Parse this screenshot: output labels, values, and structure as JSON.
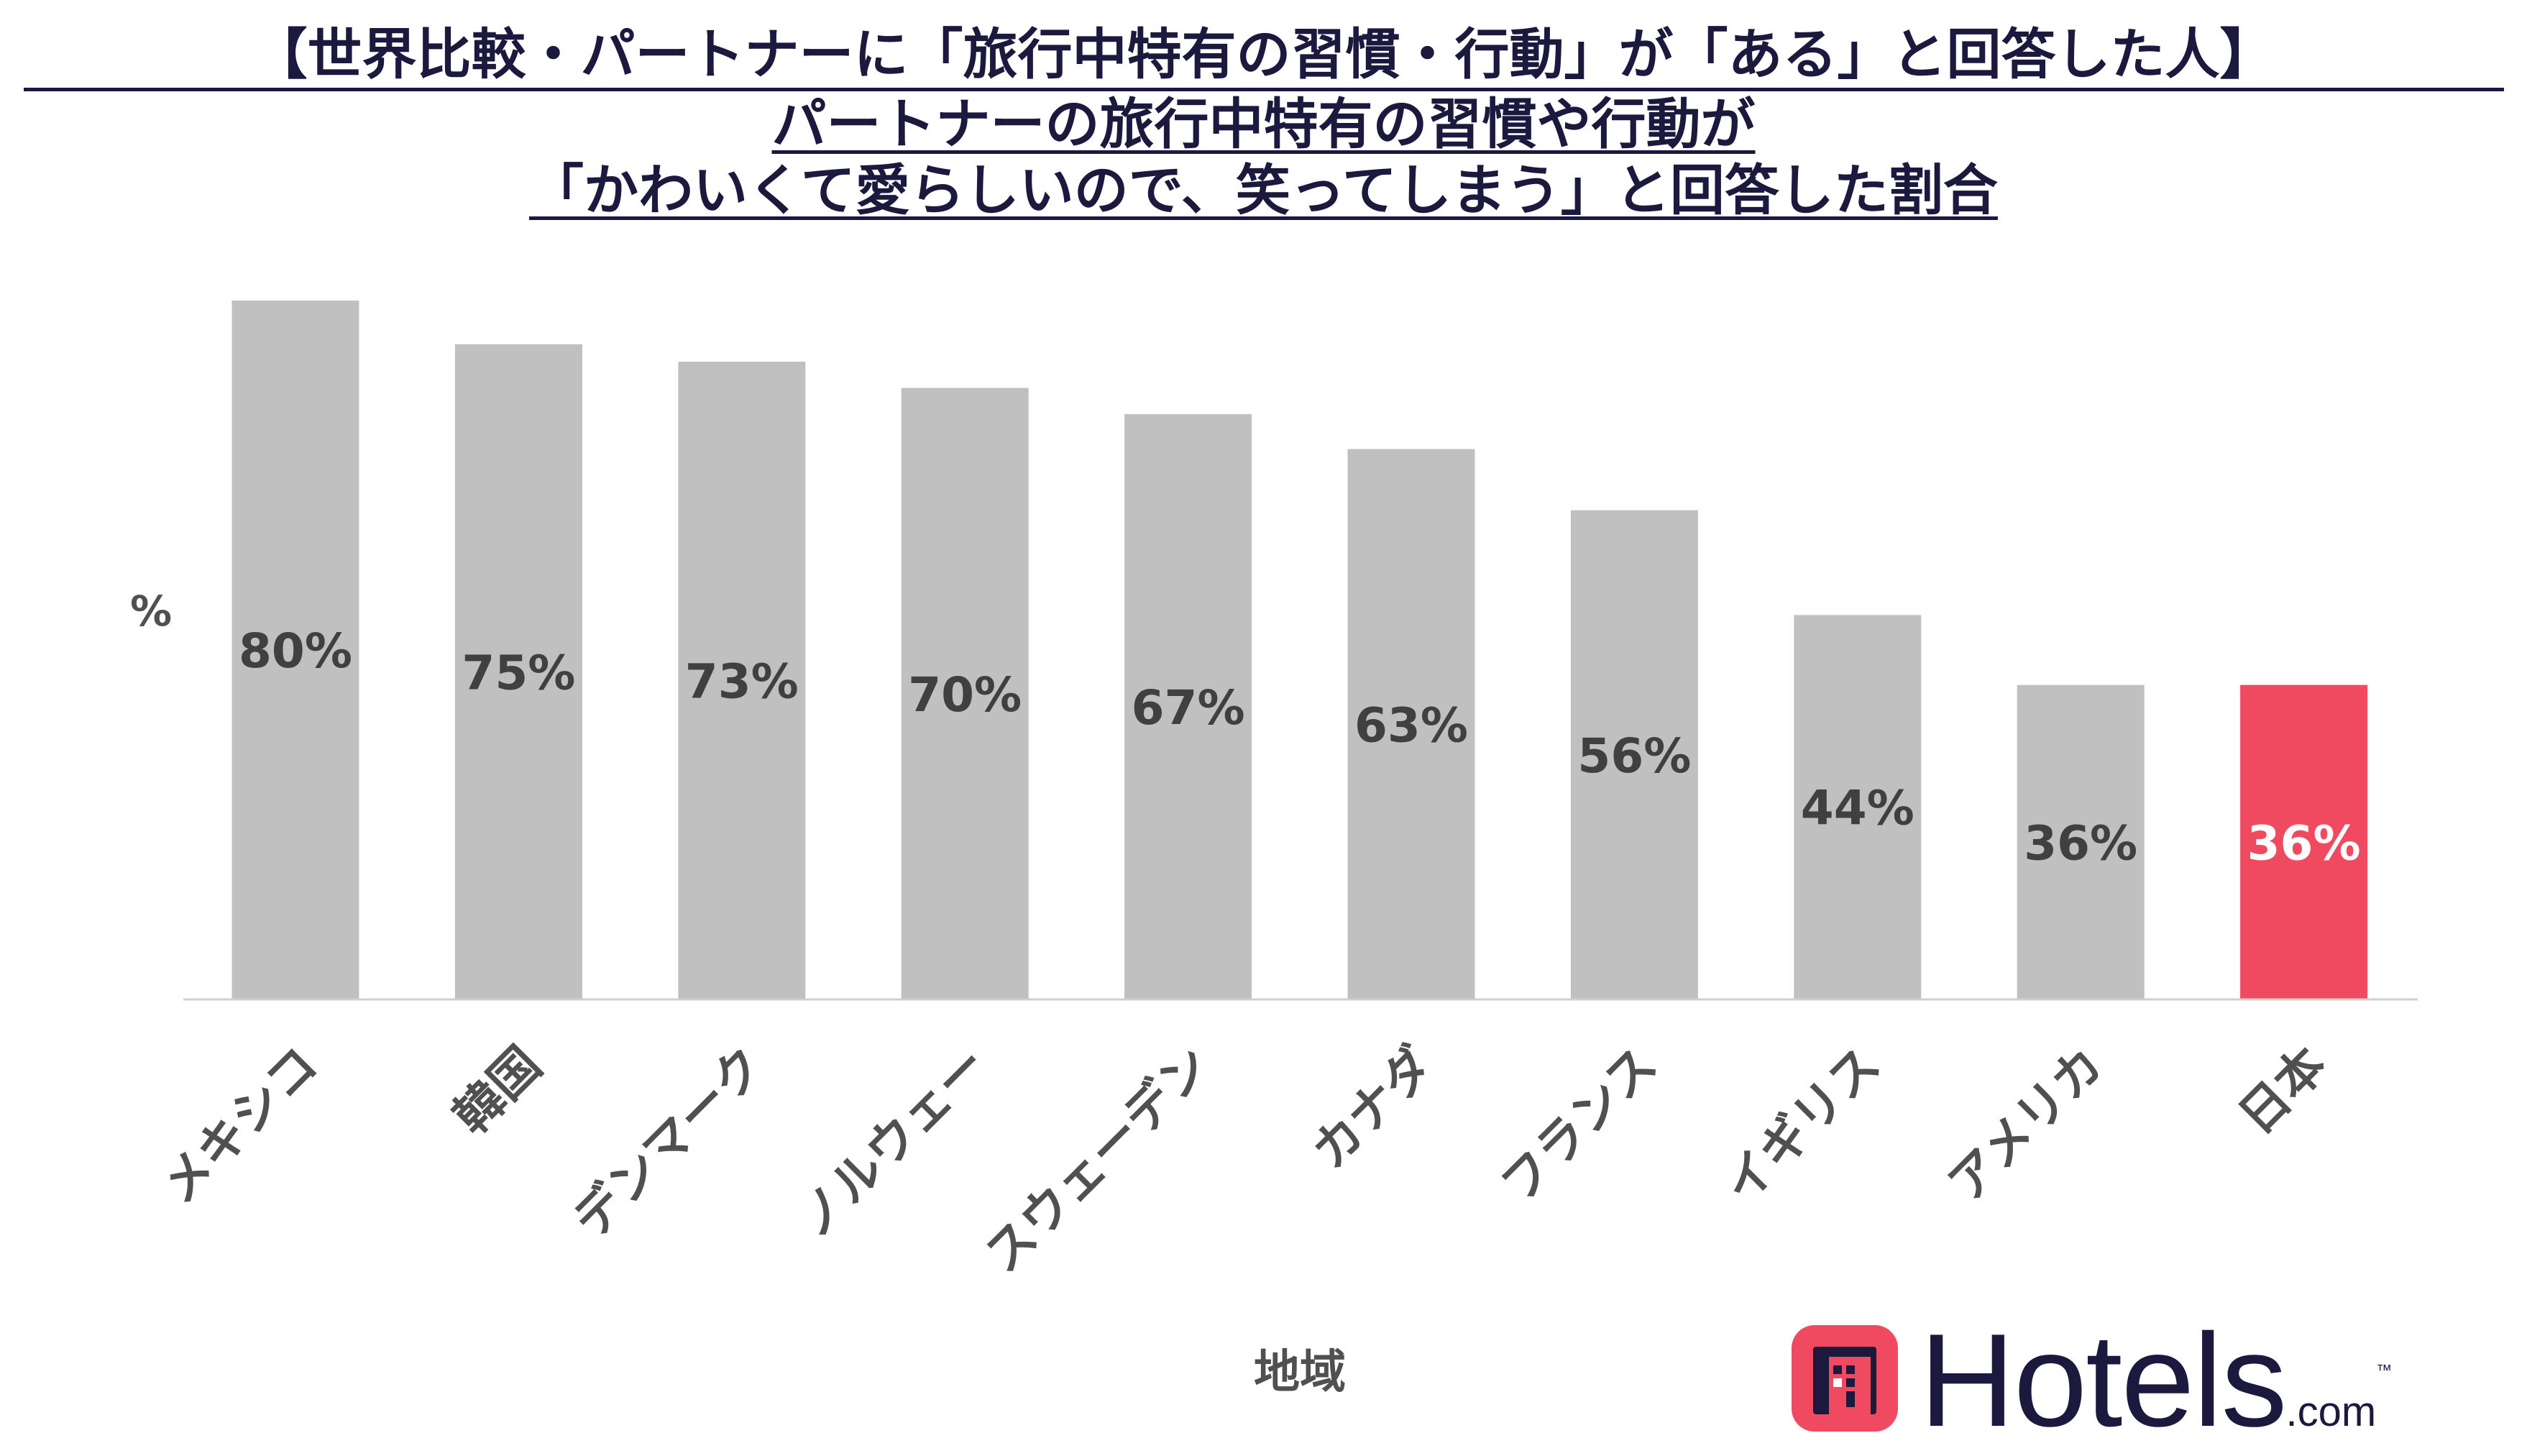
{
  "titles": {
    "line1": "【世界比較・パートナーに「旅行中特有の習慣・行動」が「ある」と回答した人】",
    "line2": "パートナーの旅行中特有の習慣や行動が",
    "line3": "「かわいくて愛らしいので、笑ってしまう」と回答した割合"
  },
  "logo": {
    "name": "Hotels",
    "suffix": ".com",
    "tm": "™"
  },
  "colors": {
    "bar_default": "#c0c0c0",
    "bar_highlight": "#ef4a5f",
    "title": "#1b1a3e",
    "label": "#404040"
  },
  "chart_data": {
    "type": "bar",
    "ylabel": "%",
    "xlabel": "地域",
    "categories": [
      "メキシコ",
      "韓国",
      "デンマーク",
      "ノルウェー",
      "スウェーデン",
      "カナダ",
      "フランス",
      "イギリス",
      "アメリカ",
      "日本"
    ],
    "values": [
      80,
      75,
      73,
      70,
      67,
      63,
      56,
      44,
      36,
      36
    ],
    "data_labels": [
      "80%",
      "75%",
      "73%",
      "70%",
      "67%",
      "63%",
      "56%",
      "44%",
      "36%",
      "36%"
    ],
    "highlight": "日本",
    "ylim": [
      0,
      80
    ],
    "grid": false,
    "legend": "none"
  }
}
